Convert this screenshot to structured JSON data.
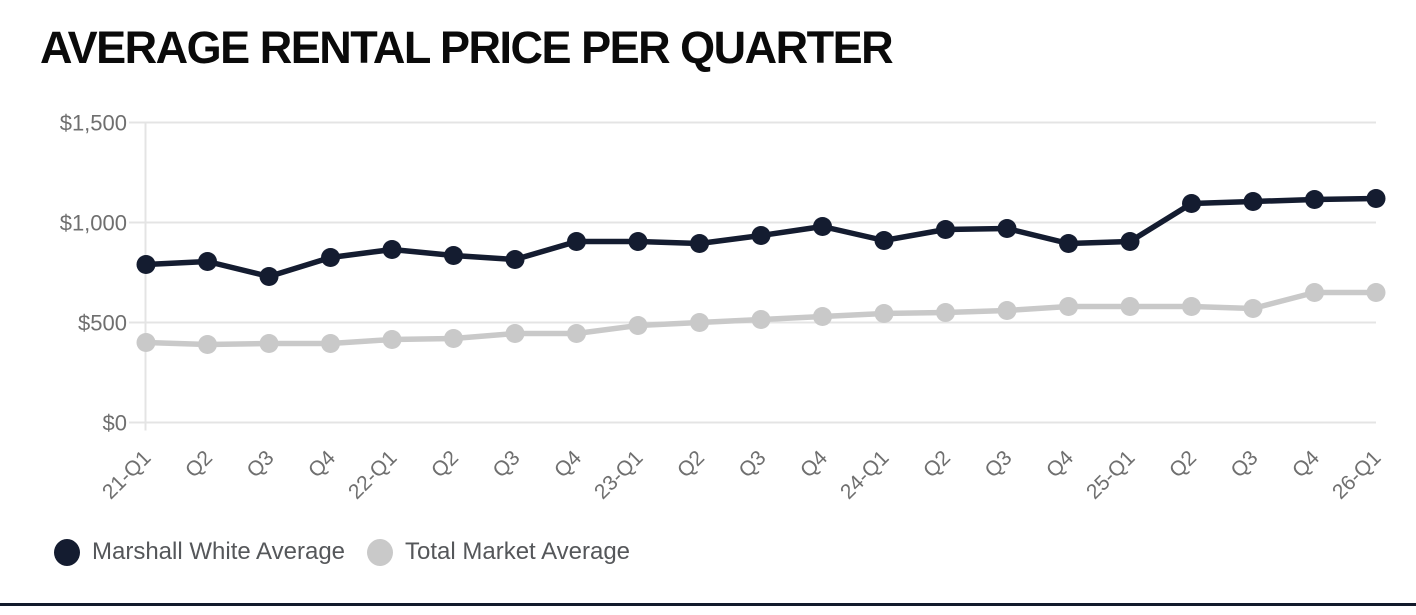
{
  "title": "AVERAGE RENTAL PRICE PER QUARTER",
  "chart_data": {
    "type": "line",
    "categories": [
      "21-Q1",
      "Q2",
      "Q3",
      "Q4",
      "22-Q1",
      "Q2",
      "Q3",
      "Q4",
      "23-Q1",
      "Q2",
      "Q3",
      "Q4",
      "24-Q1",
      "Q2",
      "Q3",
      "Q4",
      "25-Q1",
      "Q2",
      "Q3",
      "Q4",
      "26-Q1"
    ],
    "series": [
      {
        "name": "Marshall White Average",
        "color": "#141c30",
        "values": [
          790,
          805,
          730,
          825,
          865,
          835,
          815,
          905,
          905,
          895,
          935,
          980,
          910,
          965,
          970,
          895,
          905,
          1095,
          1105,
          1115,
          1120
        ]
      },
      {
        "name": "Total Market Average",
        "color": "#c9c9c9",
        "values": [
          400,
          390,
          395,
          395,
          415,
          420,
          445,
          445,
          485,
          500,
          515,
          530,
          545,
          550,
          560,
          580,
          580,
          580,
          570,
          650,
          650
        ]
      }
    ],
    "title": "AVERAGE RENTAL PRICE PER QUARTER",
    "xlabel": "",
    "ylabel": "",
    "ylim": [
      0,
      1500
    ],
    "y_ticks": [
      0,
      500,
      1000,
      1500
    ],
    "y_tick_labels": [
      "$0",
      "$500",
      "$1,000",
      "$1,500"
    ],
    "grid": true,
    "legend_position": "bottom-left"
  },
  "colors": {
    "series_navy": "#141c30",
    "series_gray": "#c9c9c9",
    "gridline": "#e4e4e4",
    "axis_label": "#6f6f6f",
    "legend_text": "#55575a",
    "title_text": "#0a0a0a",
    "bottom_rule": "#121a2b"
  },
  "legend": {
    "items": [
      {
        "label": "Marshall White Average",
        "marker": "navy-dot-icon"
      },
      {
        "label": "Total Market Average",
        "marker": "gray-dot-icon"
      }
    ]
  }
}
